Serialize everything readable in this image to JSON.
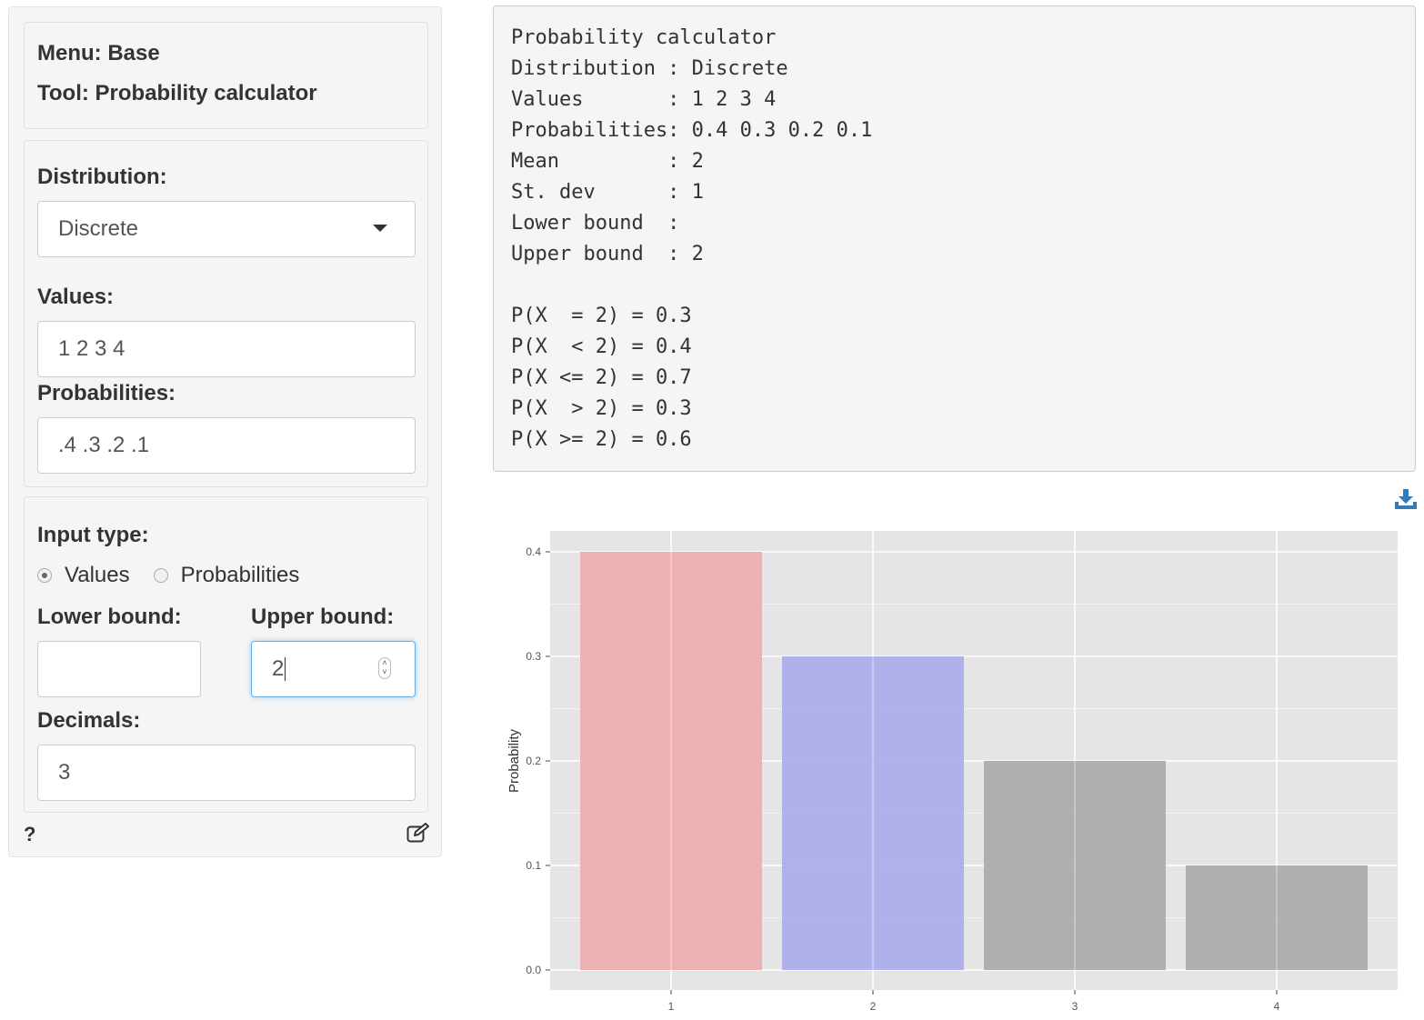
{
  "sidebar": {
    "menu_label": "Menu: Base",
    "tool_label": "Tool: Probability calculator",
    "distribution_label": "Distribution:",
    "distribution_value": "Discrete",
    "values_label": "Values:",
    "values_value": "1 2 3 4",
    "probabilities_label": "Probabilities:",
    "probabilities_value": ".4 .3 .2 .1",
    "input_type_label": "Input type:",
    "radio_values": "Values",
    "radio_probabilities": "Probabilities",
    "radio_selected": "Values",
    "lower_bound_label": "Lower bound:",
    "lower_bound_value": "",
    "upper_bound_label": "Upper bound:",
    "upper_bound_value": "2",
    "decimals_label": "Decimals:",
    "decimals_value": "3",
    "help_label": "?"
  },
  "output": {
    "lines": [
      "Probability calculator",
      "Distribution : Discrete",
      "Values       : 1 2 3 4",
      "Probabilities: 0.4 0.3 0.2 0.1",
      "Mean         : 2",
      "St. dev      : 1",
      "Lower bound  :",
      "Upper bound  : 2",
      "",
      "P(X  = 2) = 0.3",
      "P(X  < 2) = 0.4",
      "P(X <= 2) = 0.7",
      "P(X  > 2) = 0.3",
      "P(X >= 2) = 0.6"
    ]
  },
  "icons": {
    "download": "download-icon",
    "edit": "edit-icon",
    "dropdown": "caret-down-icon"
  },
  "chart_data": {
    "type": "bar",
    "categories": [
      "1",
      "2",
      "3",
      "4"
    ],
    "values": [
      0.4,
      0.3,
      0.2,
      0.1
    ],
    "colors": [
      "#edadae",
      "#abadec",
      "#aaaaaa",
      "#aaaaaa"
    ],
    "ylabel": "Probability",
    "xlabel": "",
    "yticks": [
      "0.0",
      "0.1",
      "0.2",
      "0.3",
      "0.4"
    ],
    "ylim": [
      0,
      0.42
    ],
    "grid": true,
    "panel_background": "#e5e5e5"
  }
}
